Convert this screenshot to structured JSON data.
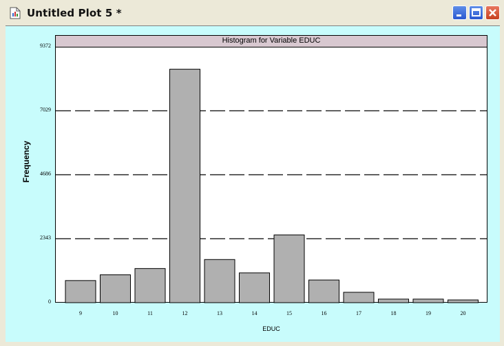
{
  "window": {
    "title": "Untitled Plot 5 *",
    "controls": [
      "minimize",
      "maximize",
      "close"
    ]
  },
  "chart_data": {
    "type": "bar",
    "title": "Histogram for Variable EDUC",
    "xlabel": "EDUC",
    "ylabel": "Frequency",
    "categories": [
      "9",
      "10",
      "11",
      "12",
      "13",
      "14",
      "15",
      "16",
      "17",
      "18",
      "19",
      "20"
    ],
    "values": [
      810,
      1020,
      1250,
      8550,
      1580,
      1090,
      2480,
      830,
      380,
      130,
      130,
      100
    ],
    "yticks": [
      "0",
      "2343",
      "4686",
      "7029",
      "9372"
    ],
    "ylim": [
      0,
      9372
    ],
    "gridlines": [
      2343,
      4686,
      7029
    ],
    "grid": "dashed horizontal",
    "legend": "none",
    "colors": {
      "bar_fill": "#b0b0b0",
      "bar_stroke": "#000000",
      "background": "#c8fcfc",
      "title_box": "#d8c8d0"
    }
  }
}
